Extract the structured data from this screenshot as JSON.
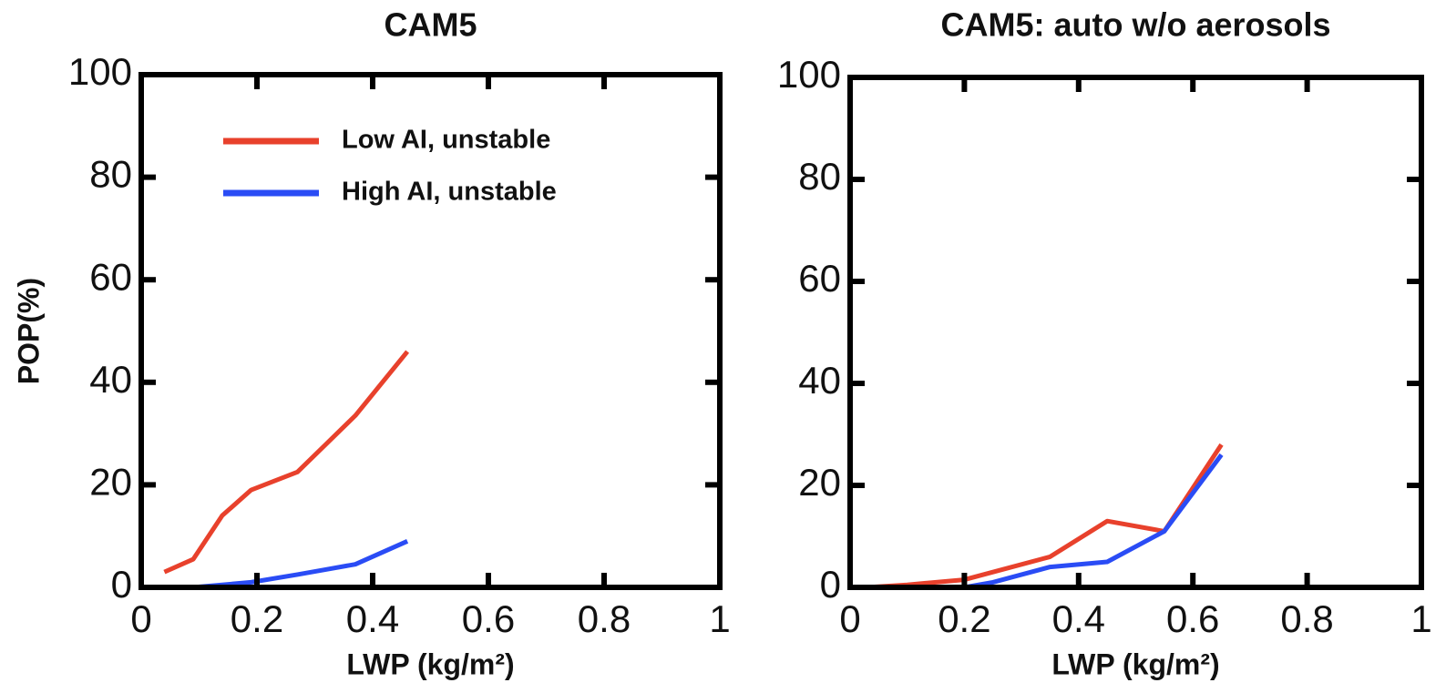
{
  "chart_data": [
    {
      "type": "line",
      "title": "CAM5",
      "xlabel": "LWP (kg/m²)",
      "ylabel": "POP(%)",
      "xlim": [
        0,
        1
      ],
      "xticks": [
        0,
        0.2,
        0.4,
        0.6,
        0.8,
        1
      ],
      "ylim": [
        0,
        100
      ],
      "yticks": [
        0,
        20,
        40,
        60,
        80,
        100
      ],
      "legend": "upper center",
      "x": [
        0.04,
        0.09,
        0.14,
        0.19,
        0.27,
        0.32,
        0.37,
        0.46
      ],
      "series": [
        {
          "name": "Low AI, unstable",
          "color": "#e8412c",
          "values": [
            3,
            5.5,
            14,
            19,
            22.5,
            28,
            33.5,
            46
          ]
        },
        {
          "name": "High AI, unstable",
          "color": "#2a4cf5",
          "values": [
            0,
            0,
            0.5,
            1,
            2.5,
            3.5,
            4.5,
            9
          ]
        }
      ]
    },
    {
      "type": "line",
      "title": "CAM5: auto w/o aerosols",
      "xlabel": "LWP (kg/m²)",
      "xlim": [
        0,
        1
      ],
      "xticks": [
        0,
        0.2,
        0.4,
        0.6,
        0.8,
        1
      ],
      "ylim": [
        0,
        100
      ],
      "yticks": [
        0,
        20,
        40,
        60,
        80,
        100
      ],
      "x": [
        0.03,
        0.1,
        0.2,
        0.25,
        0.35,
        0.45,
        0.55,
        0.65
      ],
      "series": [
        {
          "color": "#e8412c",
          "values": [
            0,
            0.5,
            1.5,
            3,
            6,
            13,
            11,
            28
          ]
        },
        {
          "color": "#2a4cf5",
          "values": [
            0,
            0,
            0,
            1,
            4,
            5,
            11,
            26
          ]
        }
      ]
    }
  ]
}
